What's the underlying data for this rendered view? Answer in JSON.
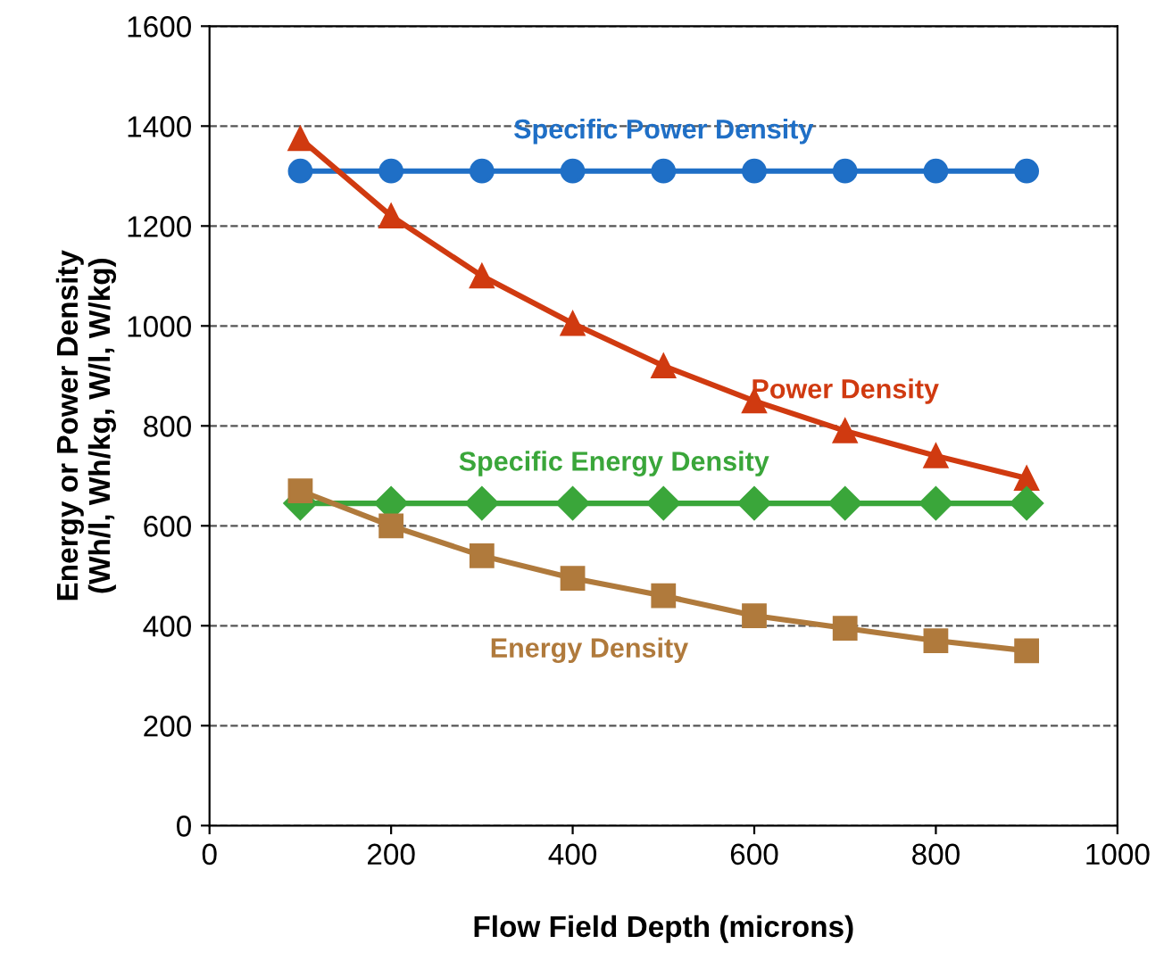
{
  "chart_data": {
    "type": "line",
    "xlabel": "Flow Field Depth (microns)",
    "ylabel": "Energy or Power Density\n(Wh/l, Wh/kg, W/l, W/kg)",
    "x": [
      100,
      200,
      300,
      400,
      500,
      600,
      700,
      800,
      900
    ],
    "series": [
      {
        "name": "Specific Power Density",
        "color": "#1f6fc6",
        "marker": "circle",
        "values": [
          1310,
          1310,
          1310,
          1310,
          1310,
          1310,
          1310,
          1310,
          1310
        ]
      },
      {
        "name": "Power Density",
        "color": "#d03a10",
        "marker": "triangle",
        "values": [
          1375,
          1220,
          1100,
          1005,
          920,
          850,
          790,
          740,
          695
        ]
      },
      {
        "name": "Specific Energy Density",
        "color": "#3aa63a",
        "marker": "diamond",
        "values": [
          645,
          645,
          645,
          645,
          645,
          645,
          645,
          645,
          645
        ]
      },
      {
        "name": "Energy Density",
        "color": "#b07a3c",
        "marker": "square",
        "values": [
          670,
          600,
          540,
          495,
          460,
          420,
          395,
          370,
          350
        ]
      }
    ],
    "xlim": [
      0,
      1000
    ],
    "xticks": [
      0,
      200,
      400,
      600,
      800,
      1000
    ],
    "ylim": [
      0,
      1600
    ],
    "yticks": [
      0,
      200,
      400,
      600,
      800,
      1000,
      1200,
      1400,
      1600
    ],
    "grid": "y",
    "legend": false,
    "line_style": "solid"
  }
}
